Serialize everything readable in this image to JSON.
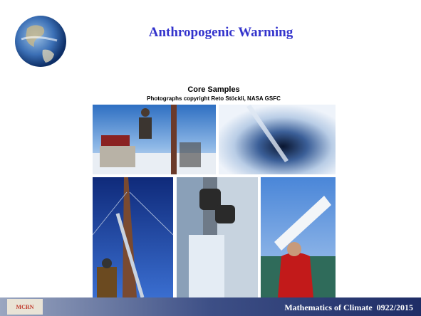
{
  "header": {
    "title": "Anthropogenic Warming"
  },
  "figure": {
    "title": "Core Samples",
    "credit": "Photographs copyright Reto Stöckli, NASA GSFC"
  },
  "footer": {
    "logo": "MCRN",
    "text": "Mathematics of Climate  0922/2015"
  }
}
